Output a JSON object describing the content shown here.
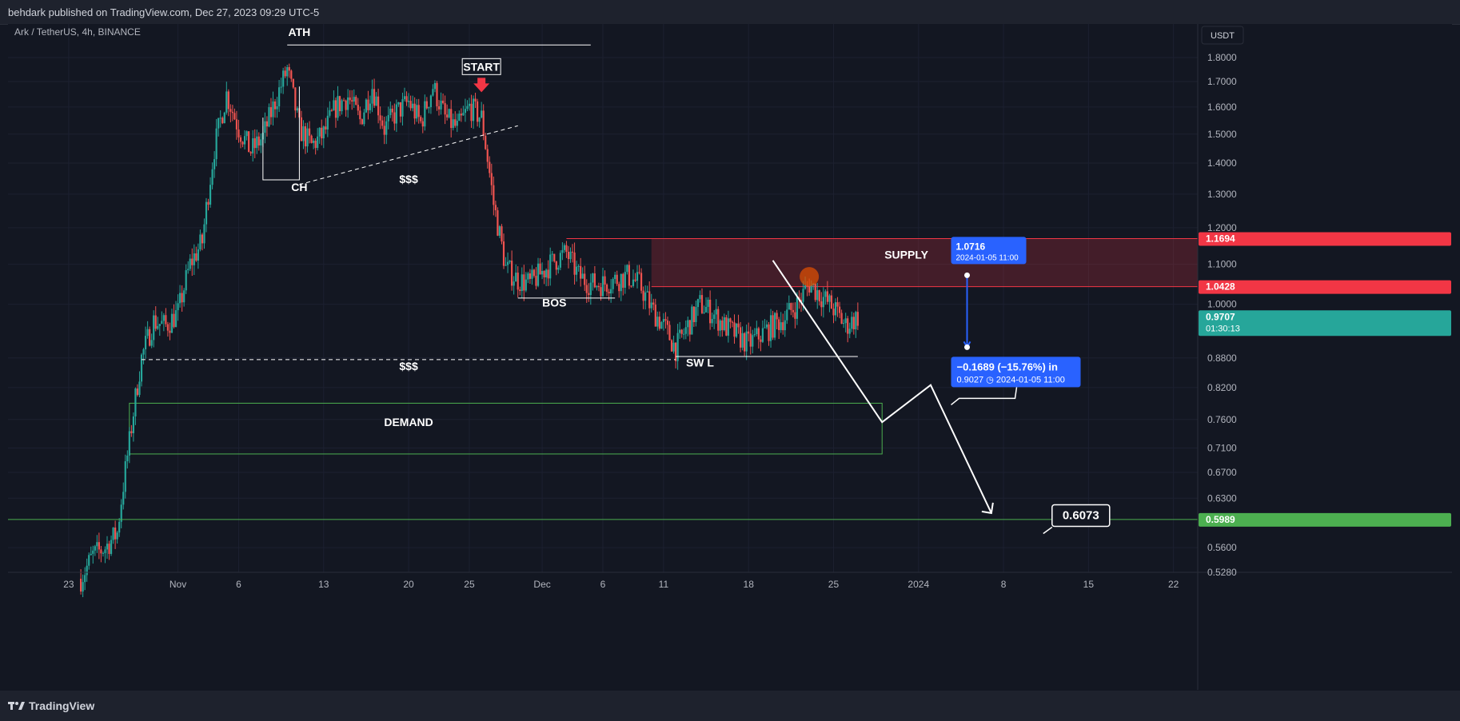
{
  "header": {
    "published": "behdark published on TradingView.com, Dec 27, 2023 09:29 UTC-5"
  },
  "footer": {
    "brand": "TradingView"
  },
  "colors": {
    "bg": "#131722",
    "up": "#26a69a",
    "down": "#ef5350",
    "grid": "#1c2030",
    "text": "#b2b5be",
    "supply": "#f23645",
    "demand": "#4caf50",
    "annotation": "#ffffff",
    "measure": "#2962ff"
  },
  "chart_data": {
    "type": "candlestick",
    "symbol_label": "Ark / TetherUS, 4h, BINANCE",
    "y_axis": {
      "currency": "USDT",
      "scale": "log",
      "range": [
        0.528,
        1.95
      ],
      "ticks": [
        "1.8000",
        "1.7000",
        "1.6000",
        "1.5000",
        "1.4000",
        "1.3000",
        "1.2000",
        "1.1000",
        "1.0000",
        "0.8800",
        "0.8200",
        "0.7600",
        "0.7100",
        "0.6700",
        "0.6300",
        "0.5600",
        "0.5280"
      ]
    },
    "x_axis": {
      "range": [
        "2023-10-18",
        "2024-01-24"
      ],
      "ticks": [
        {
          "date": "2023-10-23",
          "label": "23"
        },
        {
          "date": "2023-11-01",
          "label": "Nov"
        },
        {
          "date": "2023-11-06",
          "label": "6"
        },
        {
          "date": "2023-11-13",
          "label": "13"
        },
        {
          "date": "2023-11-20",
          "label": "20"
        },
        {
          "date": "2023-11-25",
          "label": "25"
        },
        {
          "date": "2023-12-01",
          "label": "Dec"
        },
        {
          "date": "2023-12-06",
          "label": "6"
        },
        {
          "date": "2023-12-11",
          "label": "11"
        },
        {
          "date": "2023-12-18",
          "label": "18"
        },
        {
          "date": "2023-12-25",
          "label": "25"
        },
        {
          "date": "2024-01-01",
          "label": "2024"
        },
        {
          "date": "2024-01-08",
          "label": "8"
        },
        {
          "date": "2024-01-15",
          "label": "15"
        },
        {
          "date": "2024-01-22",
          "label": "22"
        }
      ]
    },
    "price_path": [
      [
        "2023-10-24",
        0.52
      ],
      [
        "2023-10-25",
        0.55
      ],
      [
        "2023-10-26",
        0.56
      ],
      [
        "2023-10-27",
        0.58
      ],
      [
        "2023-10-28",
        0.72
      ],
      [
        "2023-10-29",
        0.88
      ],
      [
        "2023-10-30",
        0.96
      ],
      [
        "2023-10-31",
        0.95
      ],
      [
        "2023-11-01",
        0.98
      ],
      [
        "2023-11-02",
        1.1
      ],
      [
        "2023-11-03",
        1.16
      ],
      [
        "2023-11-04",
        1.45
      ],
      [
        "2023-11-05",
        1.65
      ],
      [
        "2023-11-06",
        1.52
      ],
      [
        "2023-11-07",
        1.44
      ],
      [
        "2023-11-08",
        1.49
      ],
      [
        "2023-11-09",
        1.62
      ],
      [
        "2023-11-10",
        1.75
      ],
      [
        "2023-11-11",
        1.52
      ],
      [
        "2023-11-12",
        1.46
      ],
      [
        "2023-11-13",
        1.5
      ],
      [
        "2023-11-14",
        1.6
      ],
      [
        "2023-11-15",
        1.64
      ],
      [
        "2023-11-16",
        1.55
      ],
      [
        "2023-11-17",
        1.68
      ],
      [
        "2023-11-18",
        1.52
      ],
      [
        "2023-11-19",
        1.58
      ],
      [
        "2023-11-20",
        1.62
      ],
      [
        "2023-11-21",
        1.54
      ],
      [
        "2023-11-22",
        1.68
      ],
      [
        "2023-11-23",
        1.56
      ],
      [
        "2023-11-24",
        1.52
      ],
      [
        "2023-11-25",
        1.6
      ],
      [
        "2023-11-26",
        1.56
      ],
      [
        "2023-11-27",
        1.27
      ],
      [
        "2023-11-28",
        1.09
      ],
      [
        "2023-11-29",
        1.06
      ],
      [
        "2023-11-30",
        1.05
      ],
      [
        "2023-12-01",
        1.08
      ],
      [
        "2023-12-02",
        1.11
      ],
      [
        "2023-12-03",
        1.13
      ],
      [
        "2023-12-04",
        1.07
      ],
      [
        "2023-12-05",
        1.05
      ],
      [
        "2023-12-06",
        1.05
      ],
      [
        "2023-12-07",
        1.06
      ],
      [
        "2023-12-08",
        1.07
      ],
      [
        "2023-12-09",
        1.05
      ],
      [
        "2023-12-10",
        0.99
      ],
      [
        "2023-12-11",
        0.95
      ],
      [
        "2023-12-12",
        0.9
      ],
      [
        "2023-12-13",
        0.95
      ],
      [
        "2023-12-14",
        1.0
      ],
      [
        "2023-12-15",
        0.98
      ],
      [
        "2023-12-16",
        0.95
      ],
      [
        "2023-12-17",
        0.93
      ],
      [
        "2023-12-18",
        0.91
      ],
      [
        "2023-12-19",
        0.93
      ],
      [
        "2023-12-20",
        0.95
      ],
      [
        "2023-12-21",
        0.97
      ],
      [
        "2023-12-22",
        1.0
      ],
      [
        "2023-12-23",
        1.05
      ],
      [
        "2023-12-24",
        1.02
      ],
      [
        "2023-12-25",
        0.99
      ],
      [
        "2023-12-26",
        0.95
      ],
      [
        "2023-12-27",
        0.9707
      ]
    ],
    "zones": [
      {
        "name": "SUPPLY",
        "label": "SUPPLY",
        "from": "2023-12-03",
        "to": "2024-01-24",
        "low": 1.0428,
        "high": 1.1694
      },
      {
        "name": "DEMAND",
        "label": "DEMAND",
        "from": "2023-10-28",
        "to": "2023-12-29",
        "low": 0.7,
        "high": 0.79
      }
    ],
    "levels": [
      {
        "name": "ath",
        "label": "ATH",
        "price": 1.855,
        "from": "2023-11-10",
        "to": "2023-12-05",
        "style": "solid"
      },
      {
        "name": "sell-side-liquidity",
        "label": "$$$",
        "price": 0.8766,
        "from": "2023-10-29",
        "to": "2023-12-12",
        "style": "dashed"
      },
      {
        "name": "swing-low",
        "label": "SW L",
        "price": 0.883,
        "from": "2023-12-12",
        "to": "2023-12-27",
        "style": "solid"
      },
      {
        "name": "bos",
        "label": "BOS",
        "price": 1.015,
        "from": "2023-11-29",
        "to": "2023-12-07",
        "style": "solid"
      },
      {
        "name": "target",
        "label": "",
        "price": 0.5989,
        "from": "2023-10-18",
        "to": "2024-01-24",
        "style": "solid"
      }
    ],
    "annotations": [
      {
        "name": "start",
        "label": "START",
        "date": "2023-11-26",
        "price": 1.745
      },
      {
        "name": "ch",
        "label": "CH",
        "date": "2023-11-11",
        "price": 1.31
      },
      {
        "name": "liquidity-upper",
        "label": "$$$",
        "date": "2023-11-20",
        "price": 1.335
      },
      {
        "name": "ath-label",
        "label": "ATH",
        "date": "2023-11-11",
        "price": 1.895
      },
      {
        "name": "bos-label",
        "label": "BOS",
        "date": "2023-12-02",
        "price": 0.995
      },
      {
        "name": "swl-label",
        "label": "SW L",
        "date": "2023-12-14",
        "price": 0.862
      },
      {
        "name": "liquidity-lower",
        "label": "$$$",
        "date": "2023-11-20",
        "price": 0.855
      },
      {
        "name": "demand-label",
        "label": "DEMAND",
        "date": "2023-11-20",
        "price": 0.748
      },
      {
        "name": "supply-label",
        "label": "SUPPLY",
        "date": "2023-12-31",
        "price": 1.115
      }
    ],
    "trendline": {
      "from": [
        "2023-11-11",
        1.33
      ],
      "to": [
        "2023-11-29",
        1.53
      ]
    },
    "projection": [
      [
        "2023-12-20",
        1.11
      ],
      [
        "2023-12-29",
        0.755
      ],
      [
        "2024-01-02",
        0.825
      ],
      [
        "2024-01-07",
        0.608
      ]
    ],
    "price_labels": [
      {
        "name": "supply-high",
        "value": "1.1694",
        "price": 1.1694,
        "color": "#f23645"
      },
      {
        "name": "supply-low",
        "value": "1.0428",
        "price": 1.0428,
        "color": "#f23645"
      },
      {
        "name": "last-price",
        "value": "0.9707",
        "sub": "01:30:13",
        "price": 0.9707,
        "color": "#26a69a"
      },
      {
        "name": "target-level",
        "value": "0.5989",
        "price": 0.5989,
        "color": "#4caf50"
      }
    ],
    "callouts": [
      {
        "name": "target-callout",
        "label": "0.6073",
        "date": "2024-01-12",
        "price": 0.6073
      }
    ],
    "measure": {
      "from": [
        "2024-01-05",
        1.0716
      ],
      "to": [
        "2024-01-05",
        0.9027
      ],
      "start_label": "1.0716",
      "start_sub": "2024-01-05 11:00",
      "result_label": "−0.1689 (−15.76%) in",
      "result_sub": "0.9027 ◷ 2024-01-05  11:00"
    },
    "highlight": {
      "date": "2023-12-23",
      "price": 1.068
    }
  }
}
